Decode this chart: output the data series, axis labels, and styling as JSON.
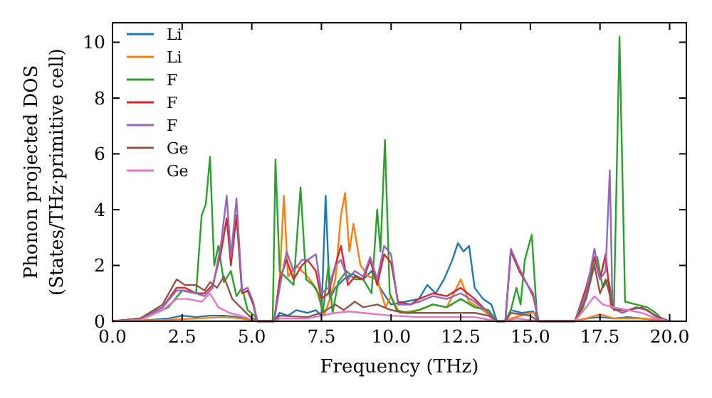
{
  "chart_data": {
    "type": "line",
    "xlabel": "Frequency (THz)",
    "ylabel": "Phonon projected DOS\n(States/THz·primitive cell)",
    "xlim": [
      0,
      20.6
    ],
    "ylim": [
      0,
      10.7
    ],
    "xticks": [
      {
        "value": 0,
        "label": "0.0"
      },
      {
        "value": 2.5,
        "label": "2.5"
      },
      {
        "value": 5,
        "label": "5.0"
      },
      {
        "value": 7.5,
        "label": "7.5"
      },
      {
        "value": 10,
        "label": "10.0"
      },
      {
        "value": 12.5,
        "label": "12.5"
      },
      {
        "value": 15,
        "label": "15.0"
      },
      {
        "value": 17.5,
        "label": "17.5"
      },
      {
        "value": 20,
        "label": "20.0"
      }
    ],
    "yticks": [
      0,
      2,
      4,
      6,
      8,
      10
    ],
    "grid": false,
    "legend": "top left",
    "marker": "none",
    "line_style": "solid",
    "series": [
      {
        "name": "Li",
        "color": "#1f77b4",
        "x": [
          0,
          1,
          2,
          2.5,
          3,
          3.5,
          4,
          4.5,
          5,
          5.2,
          5.8,
          6,
          6.3,
          6.6,
          7,
          7.3,
          7.5,
          7.65,
          7.8,
          8,
          8.3,
          8.6,
          9,
          9.3,
          9.6,
          10,
          10.5,
          11,
          11.3,
          11.6,
          11.9,
          12.2,
          12.4,
          12.6,
          12.8,
          13,
          13.3,
          13.6,
          13.8,
          14.1,
          14.3,
          14.7,
          15.1,
          15.3,
          16.6,
          17,
          17.5,
          18,
          18.5,
          19,
          19.5,
          20
        ],
        "values": [
          0,
          0.02,
          0.1,
          0.2,
          0.15,
          0.2,
          0.2,
          0.15,
          0.05,
          0,
          0,
          0.3,
          0.2,
          0.4,
          0.3,
          0.4,
          0.2,
          4.5,
          0.8,
          1.2,
          1.5,
          1.7,
          1.5,
          1.8,
          1.2,
          0.6,
          0.7,
          0.8,
          1.3,
          1.0,
          1.5,
          2.2,
          2.8,
          2.5,
          2.7,
          1.2,
          0.8,
          0.6,
          0,
          0,
          0.4,
          0.3,
          0.35,
          0,
          0,
          0.1,
          0.15,
          0.1,
          0.15,
          0.1,
          0.05,
          0
        ]
      },
      {
        "name": "Li",
        "color": "#ff7f0e",
        "x": [
          0,
          2,
          3,
          4,
          4.6,
          5.2,
          5.8,
          6,
          6.15,
          6.3,
          6.6,
          7,
          7.3,
          7.6,
          7.8,
          8,
          8.2,
          8.35,
          8.5,
          8.65,
          8.9,
          9.2,
          9.5,
          9.8,
          10,
          10.3,
          11,
          11.5,
          12,
          12.5,
          12.8,
          13.3,
          13.8,
          14.1,
          14.3,
          15,
          15.2,
          15.3,
          16.6,
          17,
          17.5,
          18,
          19,
          20
        ],
        "values": [
          0,
          0.05,
          0.1,
          0.15,
          0.1,
          0,
          0,
          1.5,
          4.5,
          1.6,
          2.0,
          1.6,
          1.2,
          0.2,
          0.8,
          1.5,
          3.8,
          4.6,
          2.5,
          3.5,
          2.0,
          1.6,
          1.5,
          0.5,
          0.9,
          0.3,
          0.4,
          0.6,
          0.5,
          1.5,
          0.7,
          0.4,
          0,
          0,
          0.1,
          0.3,
          0.3,
          0,
          0,
          0.1,
          0.25,
          0.1,
          0.1,
          0
        ]
      },
      {
        "name": "F",
        "color": "#2ca02c",
        "x": [
          0,
          1,
          2,
          2.5,
          3,
          3.2,
          3.35,
          3.5,
          3.65,
          3.8,
          4,
          4.25,
          4.45,
          4.65,
          4.85,
          5.1,
          5.2,
          5.75,
          5.85,
          6,
          6.3,
          6.5,
          6.75,
          6.95,
          7.2,
          7.4,
          7.55,
          7.75,
          7.9,
          8.1,
          8.4,
          8.7,
          9,
          9.3,
          9.5,
          9.62,
          9.78,
          9.95,
          10.2,
          10.6,
          11,
          11.5,
          12,
          12.5,
          13,
          13.5,
          13.8,
          14.1,
          14.3,
          14.5,
          14.65,
          14.8,
          15.05,
          15.25,
          16.6,
          16.9,
          17.2,
          17.4,
          17.6,
          17.8,
          18,
          18.2,
          18.4,
          18.8,
          19.2,
          19.5,
          19.8
        ],
        "values": [
          0,
          0.05,
          0.5,
          1.1,
          1.0,
          3.8,
          4.2,
          5.9,
          2.0,
          2.7,
          1.4,
          1.8,
          0.9,
          1.2,
          0.4,
          0.2,
          0,
          0,
          5.8,
          1.8,
          1.5,
          1.3,
          4.8,
          1.5,
          1.3,
          1.0,
          0.3,
          2.0,
          0.3,
          1.4,
          1.8,
          1.5,
          1.5,
          1.0,
          4.0,
          2.5,
          6.5,
          1.0,
          0.4,
          0.3,
          0.4,
          0.6,
          0.5,
          0.8,
          0.5,
          0.4,
          0,
          0,
          0.4,
          1.2,
          0.6,
          2.2,
          3.1,
          0,
          0,
          0.5,
          1.8,
          2.3,
          1.2,
          1.5,
          0.5,
          10.2,
          0.7,
          0.6,
          0.5,
          0.3,
          0
        ]
      },
      {
        "name": "F",
        "color": "#d62728",
        "x": [
          0,
          1,
          1.8,
          2.3,
          2.6,
          3,
          3.3,
          3.6,
          3.9,
          4.1,
          4.25,
          4.45,
          4.65,
          4.85,
          5.05,
          5.2,
          5.8,
          6,
          6.25,
          6.5,
          6.8,
          7,
          7.3,
          7.5,
          7.75,
          8,
          8.2,
          8.45,
          8.7,
          9,
          9.25,
          9.5,
          9.75,
          10,
          10.25,
          10.7,
          11,
          11.5,
          12,
          12.5,
          13,
          13.5,
          13.8,
          14.1,
          14.3,
          14.6,
          14.9,
          15.1,
          15.3,
          16.6,
          17,
          17.3,
          17.5,
          17.7,
          17.9,
          18.3,
          18.8,
          19.2,
          19.6,
          20
        ],
        "values": [
          0,
          0.1,
          0.5,
          1.2,
          1.2,
          1.0,
          1.0,
          1.3,
          2.5,
          3.7,
          2.0,
          3.8,
          1.0,
          1.1,
          0.6,
          0,
          0,
          1.5,
          2.2,
          1.5,
          2.0,
          2.2,
          1.8,
          0.8,
          1.0,
          2.0,
          2.7,
          1.3,
          1.6,
          1.5,
          2.2,
          1.3,
          2.4,
          2.1,
          0.7,
          0.6,
          0.8,
          1.0,
          0.9,
          1.2,
          0.8,
          0.3,
          0,
          0,
          2.5,
          1.8,
          1.3,
          0.9,
          0,
          0,
          1.2,
          2.3,
          1.5,
          2.4,
          0.5,
          0.3,
          0.5,
          0.4,
          0.1,
          0
        ]
      },
      {
        "name": "F",
        "color": "#9467bd",
        "x": [
          0,
          1,
          1.8,
          2.3,
          2.6,
          3,
          3.3,
          3.6,
          3.9,
          4.1,
          4.25,
          4.45,
          4.65,
          4.85,
          5.05,
          5.2,
          5.8,
          6,
          6.25,
          6.5,
          6.8,
          7,
          7.3,
          7.5,
          7.75,
          8,
          8.2,
          8.45,
          8.7,
          9,
          9.25,
          9.5,
          9.75,
          10,
          10.25,
          10.7,
          11,
          11.5,
          12,
          12.5,
          13,
          13.5,
          13.8,
          14.1,
          14.3,
          14.6,
          14.9,
          15.1,
          15.3,
          16.6,
          17,
          17.3,
          17.5,
          17.7,
          17.85,
          17.95,
          18.3,
          18.8,
          19.2,
          19.6,
          20
        ],
        "values": [
          0,
          0.1,
          0.5,
          1.1,
          1.1,
          1.0,
          0.9,
          1.2,
          2.8,
          4.5,
          2.3,
          4.4,
          1.1,
          1.2,
          0.7,
          0,
          0,
          1.2,
          2.5,
          1.8,
          2.2,
          2.2,
          2.4,
          1.0,
          1.2,
          2.0,
          2.2,
          1.5,
          1.8,
          1.6,
          2.3,
          1.5,
          2.7,
          2.4,
          0.6,
          0.6,
          0.7,
          0.9,
          0.8,
          1.0,
          0.7,
          0.3,
          0,
          0,
          2.6,
          1.9,
          1.3,
          1.0,
          0,
          0,
          1.0,
          2.6,
          1.5,
          1.8,
          5.4,
          0.5,
          0.3,
          0.5,
          0.4,
          0.1,
          0
        ]
      },
      {
        "name": "Ge",
        "color": "#8c564b",
        "x": [
          0,
          1,
          1.8,
          2.3,
          2.6,
          3,
          3.3,
          3.5,
          3.75,
          4,
          4.3,
          4.6,
          4.9,
          5.2,
          5.8,
          6,
          7,
          7.5,
          8,
          8.3,
          8.7,
          9,
          9.5,
          10,
          10.5,
          11,
          12,
          13,
          13.5,
          13.8,
          14.1,
          14.3,
          15,
          15.3,
          16.6,
          17,
          17.3,
          17.5,
          17.7,
          18,
          18.5,
          19,
          19.5,
          20
        ],
        "values": [
          0,
          0.1,
          0.6,
          1.5,
          1.3,
          1.3,
          1.1,
          1.4,
          1.2,
          1.6,
          0.8,
          0.5,
          0.2,
          0,
          0,
          0.2,
          0.15,
          0.3,
          0.6,
          0.4,
          0.7,
          0.5,
          0.6,
          0.4,
          0.3,
          0.3,
          0.3,
          0.3,
          0.2,
          0,
          0,
          0.3,
          0.2,
          0,
          0,
          0.8,
          2.0,
          1.0,
          1.5,
          0.4,
          0.4,
          0.5,
          0.2,
          0
        ]
      },
      {
        "name": "Ge",
        "color": "#e377c2",
        "x": [
          0,
          1,
          1.8,
          2.3,
          2.7,
          3.2,
          3.5,
          3.8,
          4.2,
          4.6,
          5,
          5.2,
          5.8,
          6,
          7,
          7.5,
          8,
          8.5,
          9,
          10,
          11,
          12,
          13,
          13.8,
          14.1,
          14.5,
          15.3,
          16.6,
          17,
          17.3,
          17.6,
          18,
          18.5,
          19,
          19.5,
          20
        ],
        "values": [
          0,
          0.05,
          0.4,
          0.8,
          0.8,
          0.7,
          1.0,
          0.5,
          0.3,
          0.2,
          0.05,
          0,
          0,
          0.1,
          0.1,
          0.2,
          0.3,
          0.35,
          0.3,
          0.2,
          0.15,
          0.15,
          0.15,
          0,
          0,
          0.1,
          0,
          0,
          0.5,
          0.9,
          0.6,
          0.5,
          0.4,
          0.3,
          0.1,
          0
        ]
      }
    ]
  }
}
